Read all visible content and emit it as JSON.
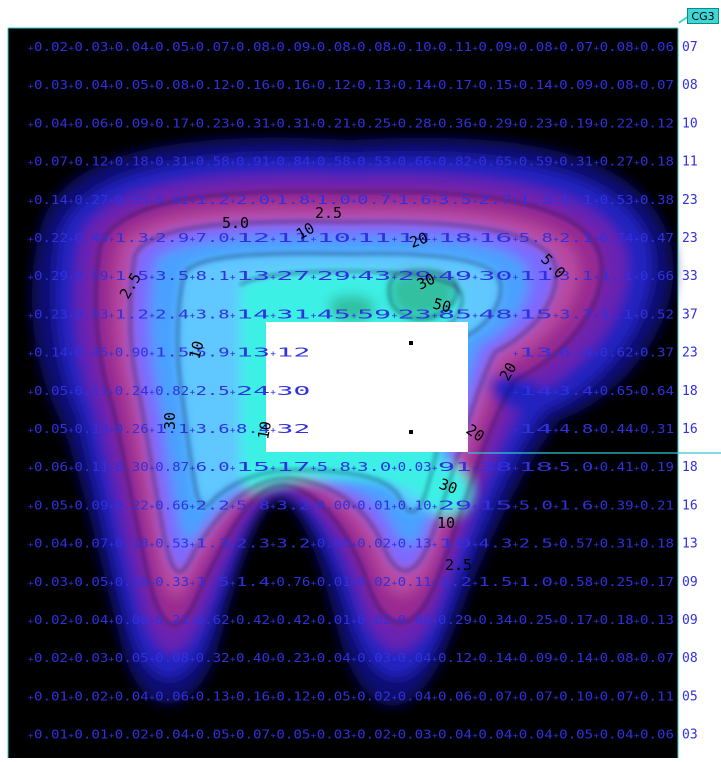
{
  "drawing": {
    "tag": "CG3",
    "background_color": "#000000",
    "frame_color": "#30c8d0",
    "grid_label_color": "#3030e0",
    "contour_label_color": "#000000"
  },
  "contour_values": [
    "2.5",
    "5.0",
    "10",
    "20",
    "30",
    "50"
  ],
  "colorscale": [
    "#000000",
    "#0a0a70",
    "#2020c0",
    "#6a20b0",
    "#9a2a90",
    "#b84aa0",
    "#7a6aff",
    "#4aa0ff",
    "#60c8ff",
    "#3ef0e6",
    "#30c0a0"
  ],
  "row_end_labels": [
    "07",
    "08",
    "10",
    "11",
    "23",
    "23",
    "33",
    "37",
    "23",
    "18",
    "16",
    "18",
    "16",
    "13",
    "09",
    "09",
    "08",
    "05",
    "03"
  ],
  "grid_rows": [
    [
      "0.02",
      "0.03",
      "0.04",
      "0.05",
      "0.07",
      "0.08",
      "0.09",
      "0.08",
      "0.08",
      "0.10",
      "0.11",
      "0.09",
      "0.08",
      "0.07",
      "0.08",
      "0.06"
    ],
    [
      "0.03",
      "0.04",
      "0.05",
      "0.08",
      "0.12",
      "0.16",
      "0.16",
      "0.12",
      "0.13",
      "0.14",
      "0.17",
      "0.15",
      "0.14",
      "0.09",
      "0.08",
      "0.07"
    ],
    [
      "0.04",
      "0.06",
      "0.09",
      "0.17",
      "0.23",
      "0.31",
      "0.31",
      "0.21",
      "0.25",
      "0.28",
      "0.36",
      "0.29",
      "0.23",
      "0.19",
      "0.22",
      "0.12"
    ],
    [
      "0.07",
      "0.12",
      "0.18",
      "0.31",
      "0.58",
      "0.91",
      "0.84",
      "0.58",
      "0.53",
      "0.66",
      "0.82",
      "0.65",
      "0.59",
      "0.31",
      "0.27",
      "0.18"
    ],
    [
      "0.14",
      "0.27",
      "0.55",
      "0.81",
      "1.2",
      "2.0",
      "1.8",
      "1.0",
      "0.7",
      "1.6",
      "3.5",
      "2.7",
      "1.3",
      "1.1",
      "0.53",
      "0.38"
    ],
    [
      "0.22",
      "0.48",
      "1.3",
      "2.9",
      "7.0",
      "12",
      "11",
      "10",
      "11",
      "14",
      "18",
      "16",
      "5.8",
      "2.1",
      "0.74",
      "0.47"
    ],
    [
      "0.29",
      "0.59",
      "1.5",
      "3.5",
      "8.1",
      "13",
      "27",
      "29",
      "43",
      "29",
      "49",
      "30",
      "11",
      "3.1",
      "1.1",
      "0.66"
    ],
    [
      "0.23",
      "0.53",
      "1.2",
      "2.4",
      "3.8",
      "14",
      "31",
      "45",
      "59",
      "23",
      "85",
      "48",
      "15",
      "3.7",
      "1.1",
      "0.52"
    ],
    [
      "0.14",
      "0.45",
      "0.90",
      "1.5",
      "5.9",
      "13",
      "12",
      "",
      "",
      "",
      "",
      "",
      "13",
      "6.4",
      "0.62",
      "0.37"
    ],
    [
      "0.05",
      "0.11",
      "0.24",
      "0.82",
      "2.5",
      "24",
      "30",
      "",
      "",
      "",
      "",
      "",
      "14",
      "3.4",
      "0.65",
      "0.64"
    ],
    [
      "0.05",
      "0.13",
      "0.26",
      "1.1",
      "3.6",
      "8.4",
      "32",
      "",
      "",
      "",
      "",
      "",
      "14",
      "4.8",
      "0.44",
      "0.31"
    ],
    [
      "0.06",
      "0.11",
      "0.30",
      "0.87",
      "6.0",
      "15",
      "17",
      "5.8",
      "3.0",
      "0.03",
      "91",
      "38",
      "18",
      "5.0",
      "0.41",
      "0.19"
    ],
    [
      "0.05",
      "0.09",
      "0.22",
      "0.66",
      "2.2",
      "5.8",
      "3.2",
      "0.00",
      "0.01",
      "0.10",
      "29",
      "15",
      "5.0",
      "1.6",
      "0.39",
      "0.21"
    ],
    [
      "0.04",
      "0.07",
      "0.18",
      "0.53",
      "1.3",
      "2.3",
      "3.2",
      "0.00",
      "0.02",
      "0.13",
      "10",
      "4.3",
      "2.5",
      "0.57",
      "0.31",
      "0.18"
    ],
    [
      "0.03",
      "0.05",
      "0.16",
      "0.33",
      "1.5",
      "1.4",
      "0.76",
      "0.01",
      "0.02",
      "0.11",
      "1.2",
      "1.5",
      "1.0",
      "0.58",
      "0.25",
      "0.17"
    ],
    [
      "0.02",
      "0.04",
      "0.08",
      "0.21",
      "0.62",
      "0.42",
      "0.42",
      "0.01",
      "0.02",
      "0.06",
      "0.29",
      "0.34",
      "0.25",
      "0.17",
      "0.18",
      "0.13"
    ],
    [
      "0.02",
      "0.03",
      "0.05",
      "0.08",
      "0.32",
      "0.40",
      "0.23",
      "0.04",
      "0.03",
      "0.04",
      "0.12",
      "0.14",
      "0.09",
      "0.14",
      "0.08",
      "0.07"
    ],
    [
      "0.01",
      "0.02",
      "0.04",
      "0.06",
      "0.13",
      "0.16",
      "0.12",
      "0.05",
      "0.02",
      "0.04",
      "0.06",
      "0.07",
      "0.07",
      "0.10",
      "0.07",
      "0.11"
    ],
    [
      "0.01",
      "0.01",
      "0.02",
      "0.04",
      "0.05",
      "0.07",
      "0.05",
      "0.03",
      "0.02",
      "0.03",
      "0.04",
      "0.04",
      "0.04",
      "0.05",
      "0.04",
      "0.06"
    ]
  ],
  "contour_labels": [
    "2.5",
    "5.0",
    "10",
    "20",
    "30",
    "50",
    "10",
    "20",
    "30",
    "2.5",
    "10",
    "20",
    "30",
    "5.0",
    "2.5",
    "10"
  ]
}
